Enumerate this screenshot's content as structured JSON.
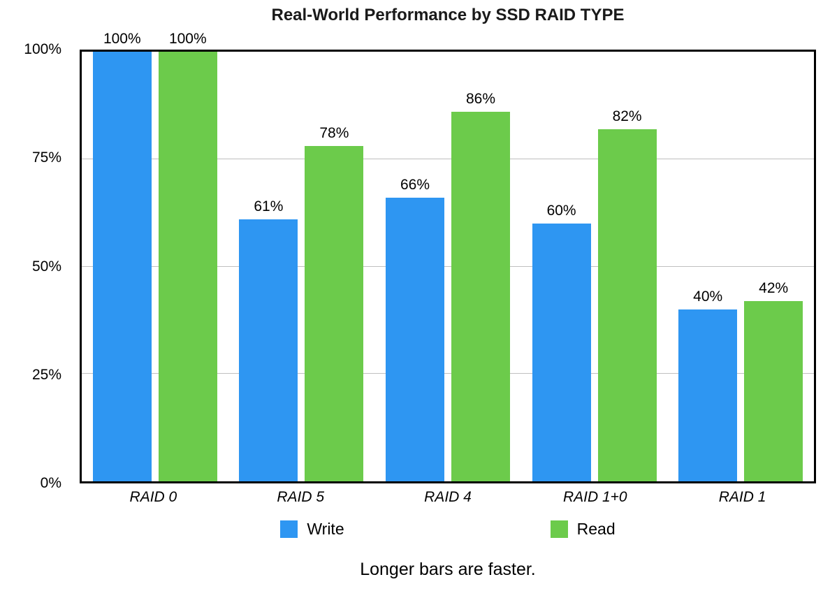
{
  "chart_data": {
    "type": "bar",
    "title": "Real-World Performance by SSD RAID TYPE",
    "caption": "Longer bars are faster.",
    "categories": [
      "RAID 0",
      "RAID 5",
      "RAID 4",
      "RAID 1+0",
      "RAID 1"
    ],
    "series": [
      {
        "name": "Write",
        "color": "#2E96F2",
        "values": [
          100,
          61,
          66,
          60,
          40
        ],
        "labels": [
          "100%",
          "61%",
          "66%",
          "60%",
          "40%"
        ]
      },
      {
        "name": "Read",
        "color": "#6CCB4B",
        "values": [
          100,
          78,
          86,
          82,
          42
        ],
        "labels": [
          "100%",
          "78%",
          "86%",
          "82%",
          "42%"
        ]
      }
    ],
    "ylim": [
      0,
      100
    ],
    "yticks": [
      {
        "value": 0,
        "label": "0%"
      },
      {
        "value": 25,
        "label": "25%"
      },
      {
        "value": 50,
        "label": "50%"
      },
      {
        "value": 75,
        "label": "75%"
      },
      {
        "value": 100,
        "label": "100%"
      }
    ],
    "gridlines": [
      25,
      50,
      75
    ],
    "legend_position": "bottom",
    "xlabel": "",
    "ylabel": "",
    "colors": {
      "plot_border": "#000000",
      "gridline": "#BFBFBF",
      "text": "#000000",
      "background": "#FFFFFF"
    }
  }
}
